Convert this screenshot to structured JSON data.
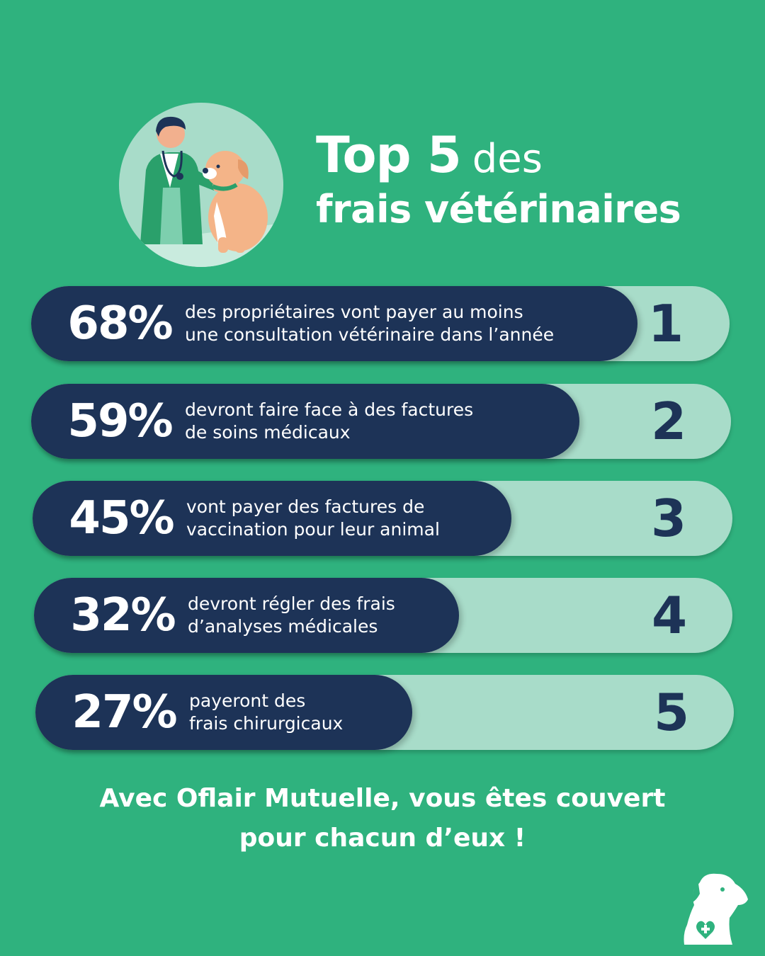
{
  "header": {
    "title_big": "Top 5",
    "title_light": "des",
    "title_line2": "frais vétérinaires"
  },
  "chart_data": {
    "type": "bar",
    "orientation": "horizontal",
    "unit": "%",
    "categories": [
      "des propriétaires vont payer au moins une consultation vétérinaire dans l’année",
      "devront faire face à des factures de soins médicaux",
      "vont payer des factures de vaccination pour leur animal",
      "devront régler des frais d’analyses médicales",
      "payeront des frais chirurgicaux"
    ],
    "values": [
      68,
      59,
      45,
      32,
      27
    ],
    "ranks": [
      "1",
      "2",
      "3",
      "4",
      "5"
    ],
    "value_labels": [
      "68%",
      "59%",
      "45%",
      "32%",
      "27%"
    ],
    "description_lines": [
      [
        "des propriétaires vont payer au moins",
        "une consultation vétérinaire dans l’année"
      ],
      [
        "devront faire face à des factures",
        "de soins médicaux"
      ],
      [
        "vont payer des factures de",
        "vaccination pour leur animal"
      ],
      [
        "devront régler des frais",
        "d’analyses médicales"
      ],
      [
        "payeront des",
        "frais chirurgicaux"
      ]
    ],
    "xlim": [
      0,
      100
    ]
  },
  "footer": {
    "line1": "Avec Oflair Mutuelle, vous êtes couvert",
    "line2": "pour chacun d’eux !"
  },
  "colors": {
    "background": "#2fb27e",
    "bar": "#1d3357",
    "track": "#a8dcc9",
    "text": "#ffffff"
  },
  "icons": {
    "illustration": "veterinarian-with-dog-illustration",
    "logo": "dog-heart-logo-icon"
  }
}
